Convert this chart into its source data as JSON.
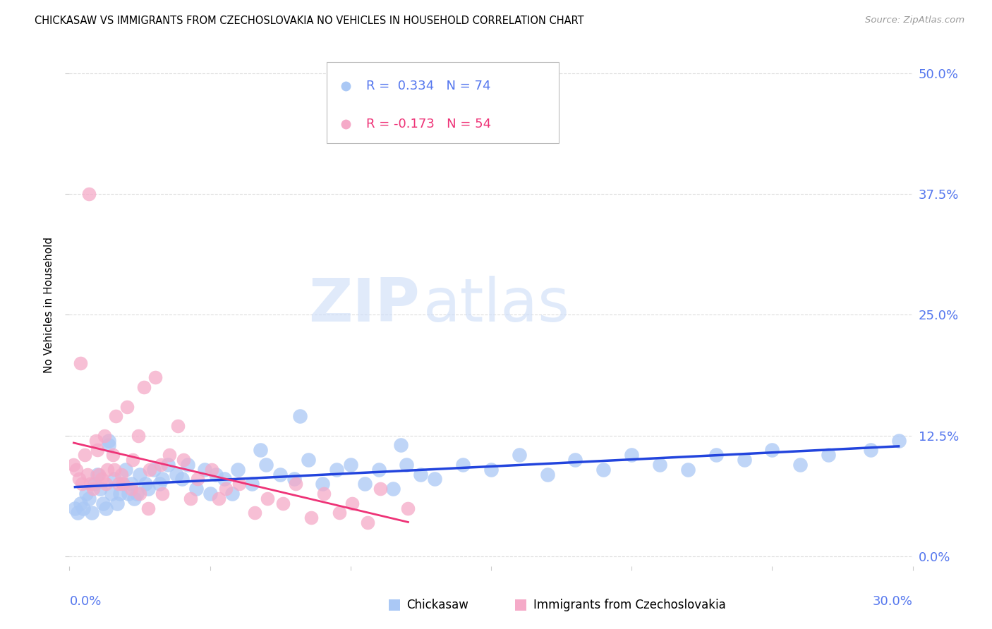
{
  "title": "CHICKASAW VS IMMIGRANTS FROM CZECHOSLOVAKIA NO VEHICLES IN HOUSEHOLD CORRELATION CHART",
  "source": "Source: ZipAtlas.com",
  "ylabel": "No Vehicles in Household",
  "xlim": [
    0.0,
    30.0
  ],
  "ylim": [
    -1.0,
    53.0
  ],
  "ytick_values": [
    0.0,
    12.5,
    25.0,
    37.5,
    50.0
  ],
  "ytick_labels": [
    "0.0%",
    "12.5%",
    "25.0%",
    "37.5%",
    "50.0%"
  ],
  "xtick_label_left": "0.0%",
  "xtick_label_right": "30.0%",
  "legend_blue_r": "R =  0.334",
  "legend_blue_n": "N = 74",
  "legend_pink_r": "R = -0.173",
  "legend_pink_n": "N = 54",
  "blue_color": "#aac8f5",
  "pink_color": "#f5aac8",
  "blue_line_color": "#2244dd",
  "pink_line_color": "#ee3377",
  "label_color": "#5577ee",
  "watermark_zip": "ZIP",
  "watermark_atlas": "atlas",
  "blue_scatter_x": [
    0.2,
    0.3,
    0.4,
    0.5,
    0.6,
    0.7,
    0.8,
    0.9,
    1.0,
    1.1,
    1.2,
    1.3,
    1.4,
    1.5,
    1.6,
    1.7,
    1.8,
    1.9,
    2.0,
    2.1,
    2.2,
    2.3,
    2.5,
    2.7,
    2.8,
    3.0,
    3.2,
    3.5,
    3.8,
    4.0,
    4.2,
    4.5,
    4.8,
    5.0,
    5.2,
    5.5,
    5.8,
    6.0,
    6.5,
    7.0,
    7.5,
    8.0,
    8.5,
    9.0,
    9.5,
    10.0,
    10.5,
    11.0,
    11.5,
    12.0,
    12.5,
    13.0,
    14.0,
    15.0,
    16.0,
    17.0,
    18.0,
    19.0,
    20.0,
    21.0,
    22.0,
    23.0,
    24.0,
    25.0,
    26.0,
    27.0,
    28.5,
    29.5,
    1.4,
    2.4,
    3.3,
    6.8,
    8.2,
    11.8
  ],
  "blue_scatter_y": [
    5.0,
    4.5,
    5.5,
    5.0,
    6.5,
    6.0,
    4.5,
    7.5,
    8.5,
    7.0,
    5.5,
    5.0,
    11.5,
    6.5,
    8.0,
    5.5,
    6.5,
    7.5,
    9.0,
    6.5,
    7.5,
    6.0,
    8.5,
    7.5,
    7.0,
    9.0,
    7.5,
    9.5,
    8.5,
    8.0,
    9.5,
    7.0,
    9.0,
    6.5,
    8.5,
    8.0,
    6.5,
    9.0,
    7.5,
    9.5,
    8.5,
    8.0,
    10.0,
    7.5,
    9.0,
    9.5,
    7.5,
    9.0,
    7.0,
    9.5,
    8.5,
    8.0,
    9.5,
    9.0,
    10.5,
    8.5,
    10.0,
    9.0,
    10.5,
    9.5,
    9.0,
    10.5,
    10.0,
    11.0,
    9.5,
    10.5,
    11.0,
    12.0,
    12.0,
    6.5,
    8.0,
    11.0,
    14.5,
    11.5
  ],
  "pink_scatter_x": [
    0.15,
    0.25,
    0.35,
    0.45,
    0.55,
    0.65,
    0.75,
    0.85,
    0.95,
    1.05,
    1.15,
    1.25,
    1.35,
    1.55,
    1.65,
    1.75,
    1.85,
    2.05,
    2.25,
    2.45,
    2.65,
    2.85,
    3.05,
    3.25,
    3.55,
    3.85,
    4.05,
    4.55,
    5.05,
    5.55,
    6.05,
    7.05,
    8.05,
    9.05,
    10.05,
    11.05,
    12.05,
    0.4,
    0.7,
    1.0,
    1.3,
    1.6,
    1.9,
    2.2,
    2.5,
    2.8,
    3.3,
    4.3,
    5.3,
    6.6,
    7.6,
    8.6,
    9.6,
    10.6
  ],
  "pink_scatter_y": [
    9.5,
    9.0,
    8.0,
    7.5,
    10.5,
    8.5,
    7.5,
    7.0,
    12.0,
    8.5,
    8.0,
    12.5,
    9.0,
    10.5,
    14.5,
    7.5,
    8.5,
    15.5,
    10.0,
    12.5,
    17.5,
    9.0,
    18.5,
    9.5,
    10.5,
    13.5,
    10.0,
    8.0,
    9.0,
    7.0,
    7.5,
    6.0,
    7.5,
    6.5,
    5.5,
    7.0,
    5.0,
    20.0,
    37.5,
    11.0,
    7.5,
    9.0,
    7.5,
    7.0,
    6.5,
    5.0,
    6.5,
    6.0,
    6.0,
    4.5,
    5.5,
    4.0,
    4.5,
    3.5
  ]
}
